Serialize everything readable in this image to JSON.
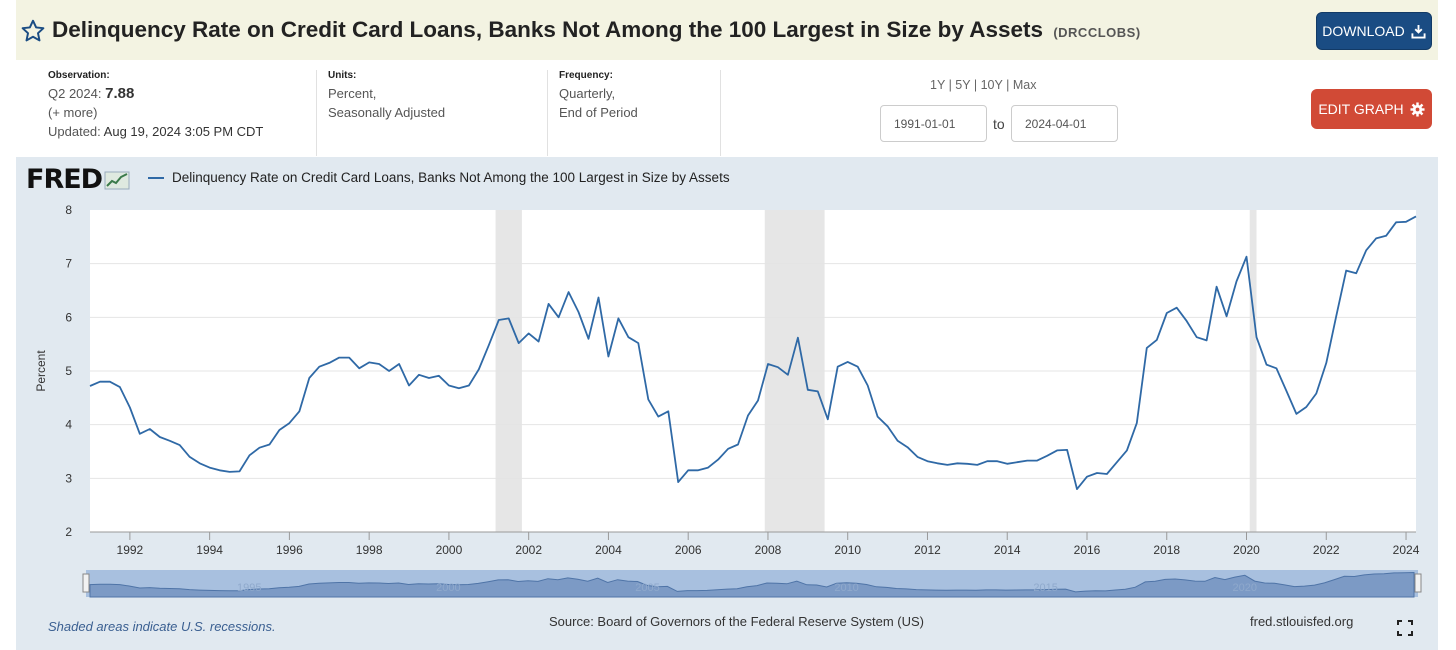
{
  "header": {
    "title": "Delinquency Rate on Credit Card Loans, Banks Not Among the 100 Largest in Size by Assets",
    "series_id": "(DRCCLOBS)",
    "download_label": "DOWNLOAD"
  },
  "meta": {
    "observation_label": "Observation:",
    "observation_period": "Q2 2024:",
    "observation_value": "7.88",
    "more_link": "(+ more)",
    "updated_label": "Updated:",
    "updated_value": "Aug 19, 2024 3:05 PM CDT",
    "units_label": "Units:",
    "units_line1": "Percent,",
    "units_line2": "Seasonally Adjusted",
    "frequency_label": "Frequency:",
    "frequency_line1": "Quarterly,",
    "frequency_line2": "End of Period"
  },
  "controls": {
    "range_1y": "1Y",
    "range_5y": "5Y",
    "range_10y": "10Y",
    "range_max": "Max",
    "sep": "|",
    "start_date": "1991-01-01",
    "to_label": "to",
    "end_date": "2024-04-01",
    "edit_label": "EDIT GRAPH"
  },
  "logo": "FRED",
  "footer": {
    "recession_note": "Shaded areas indicate U.S. recessions.",
    "source": "Source: Board of Governors of the Federal Reserve System (US)",
    "site": "fred.stlouisfed.org"
  },
  "colors": {
    "series": "#2f69a6",
    "recession": "#e6e6e6",
    "panel": "#e1e9f0",
    "download": "#1a4c83",
    "edit": "#d14a36"
  },
  "icons": {
    "favorite": "star-icon",
    "download": "download-icon",
    "settings": "gear-icon",
    "fullscreen": "fullscreen-icon"
  },
  "chart_data": {
    "type": "line",
    "title": "",
    "xlabel": "",
    "ylabel": "Percent",
    "ylim": [
      2,
      8
    ],
    "yticks": [
      "2",
      "3",
      "4",
      "5",
      "6",
      "7",
      "8"
    ],
    "xlim": [
      1991.0,
      2024.25
    ],
    "xticks": [
      "1992",
      "1994",
      "1996",
      "1998",
      "2000",
      "2002",
      "2004",
      "2006",
      "2008",
      "2010",
      "2012",
      "2014",
      "2016",
      "2018",
      "2020",
      "2022",
      "2024"
    ],
    "navigator_ticks": [
      "1995",
      "2000",
      "2005",
      "2010",
      "2015",
      "2020"
    ],
    "grid": true,
    "legend_position": "top",
    "recessions": [
      [
        2001.17,
        2001.83
      ],
      [
        2007.92,
        2009.42
      ],
      [
        2020.08,
        2020.25
      ]
    ],
    "series": [
      {
        "name": "Delinquency Rate on Credit Card Loans, Banks Not Among the 100 Largest in Size by Assets",
        "x": [
          1991.0,
          1991.25,
          1991.5,
          1991.75,
          1992.0,
          1992.25,
          1992.5,
          1992.75,
          1993.0,
          1993.25,
          1993.5,
          1993.75,
          1994.0,
          1994.25,
          1994.5,
          1994.75,
          1995.0,
          1995.25,
          1995.5,
          1995.75,
          1996.0,
          1996.25,
          1996.5,
          1996.75,
          1997.0,
          1997.25,
          1997.5,
          1997.75,
          1998.0,
          1998.25,
          1998.5,
          1998.75,
          1999.0,
          1999.25,
          1999.5,
          1999.75,
          2000.0,
          2000.25,
          2000.5,
          2000.75,
          2001.0,
          2001.25,
          2001.5,
          2001.75,
          2002.0,
          2002.25,
          2002.5,
          2002.75,
          2003.0,
          2003.25,
          2003.5,
          2003.75,
          2004.0,
          2004.25,
          2004.5,
          2004.75,
          2005.0,
          2005.25,
          2005.5,
          2005.75,
          2006.0,
          2006.25,
          2006.5,
          2006.75,
          2007.0,
          2007.25,
          2007.5,
          2007.75,
          2008.0,
          2008.25,
          2008.5,
          2008.75,
          2009.0,
          2009.25,
          2009.5,
          2009.75,
          2010.0,
          2010.25,
          2010.5,
          2010.75,
          2011.0,
          2011.25,
          2011.5,
          2011.75,
          2012.0,
          2012.25,
          2012.5,
          2012.75,
          2013.0,
          2013.25,
          2013.5,
          2013.75,
          2014.0,
          2014.25,
          2014.5,
          2014.75,
          2015.0,
          2015.25,
          2015.5,
          2015.75,
          2016.0,
          2016.25,
          2016.5,
          2016.75,
          2017.0,
          2017.25,
          2017.5,
          2017.75,
          2018.0,
          2018.25,
          2018.5,
          2018.75,
          2019.0,
          2019.25,
          2019.5,
          2019.75,
          2020.0,
          2020.25,
          2020.5,
          2020.75,
          2021.0,
          2021.25,
          2021.5,
          2021.75,
          2022.0,
          2022.25,
          2022.5,
          2022.75,
          2023.0,
          2023.25,
          2023.5,
          2023.75,
          2024.0,
          2024.25
        ],
        "values": [
          4.72,
          4.8,
          4.8,
          4.7,
          4.32,
          3.83,
          3.92,
          3.77,
          3.7,
          3.62,
          3.4,
          3.28,
          3.2,
          3.15,
          3.12,
          3.13,
          3.43,
          3.57,
          3.63,
          3.9,
          4.03,
          4.25,
          4.87,
          5.08,
          5.15,
          5.25,
          5.25,
          5.05,
          5.16,
          5.13,
          5.0,
          5.13,
          4.73,
          4.93,
          4.87,
          4.91,
          4.73,
          4.68,
          4.73,
          5.03,
          5.48,
          5.95,
          5.98,
          5.52,
          5.7,
          5.55,
          6.25,
          6.0,
          6.47,
          6.1,
          5.6,
          6.37,
          5.27,
          5.98,
          5.63,
          5.52,
          4.47,
          4.15,
          4.25,
          2.93,
          3.15,
          3.15,
          3.2,
          3.35,
          3.55,
          3.63,
          4.17,
          4.45,
          5.13,
          5.07,
          4.93,
          5.62,
          4.65,
          4.62,
          4.1,
          5.08,
          5.17,
          5.08,
          4.73,
          4.15,
          3.97,
          3.7,
          3.58,
          3.4,
          3.32,
          3.28,
          3.25,
          3.28,
          3.27,
          3.25,
          3.32,
          3.32,
          3.27,
          3.3,
          3.33,
          3.33,
          3.42,
          3.52,
          3.53,
          2.8,
          3.03,
          3.1,
          3.08,
          3.3,
          3.52,
          4.03,
          5.43,
          5.58,
          6.08,
          6.18,
          5.93,
          5.63,
          5.57,
          6.57,
          6.02,
          6.67,
          7.13,
          5.63,
          5.12,
          5.05,
          4.63,
          4.2,
          4.33,
          4.58,
          5.15,
          6.02,
          6.87,
          6.82,
          7.25,
          7.47,
          7.52,
          7.77,
          7.78,
          7.88
        ]
      }
    ]
  }
}
